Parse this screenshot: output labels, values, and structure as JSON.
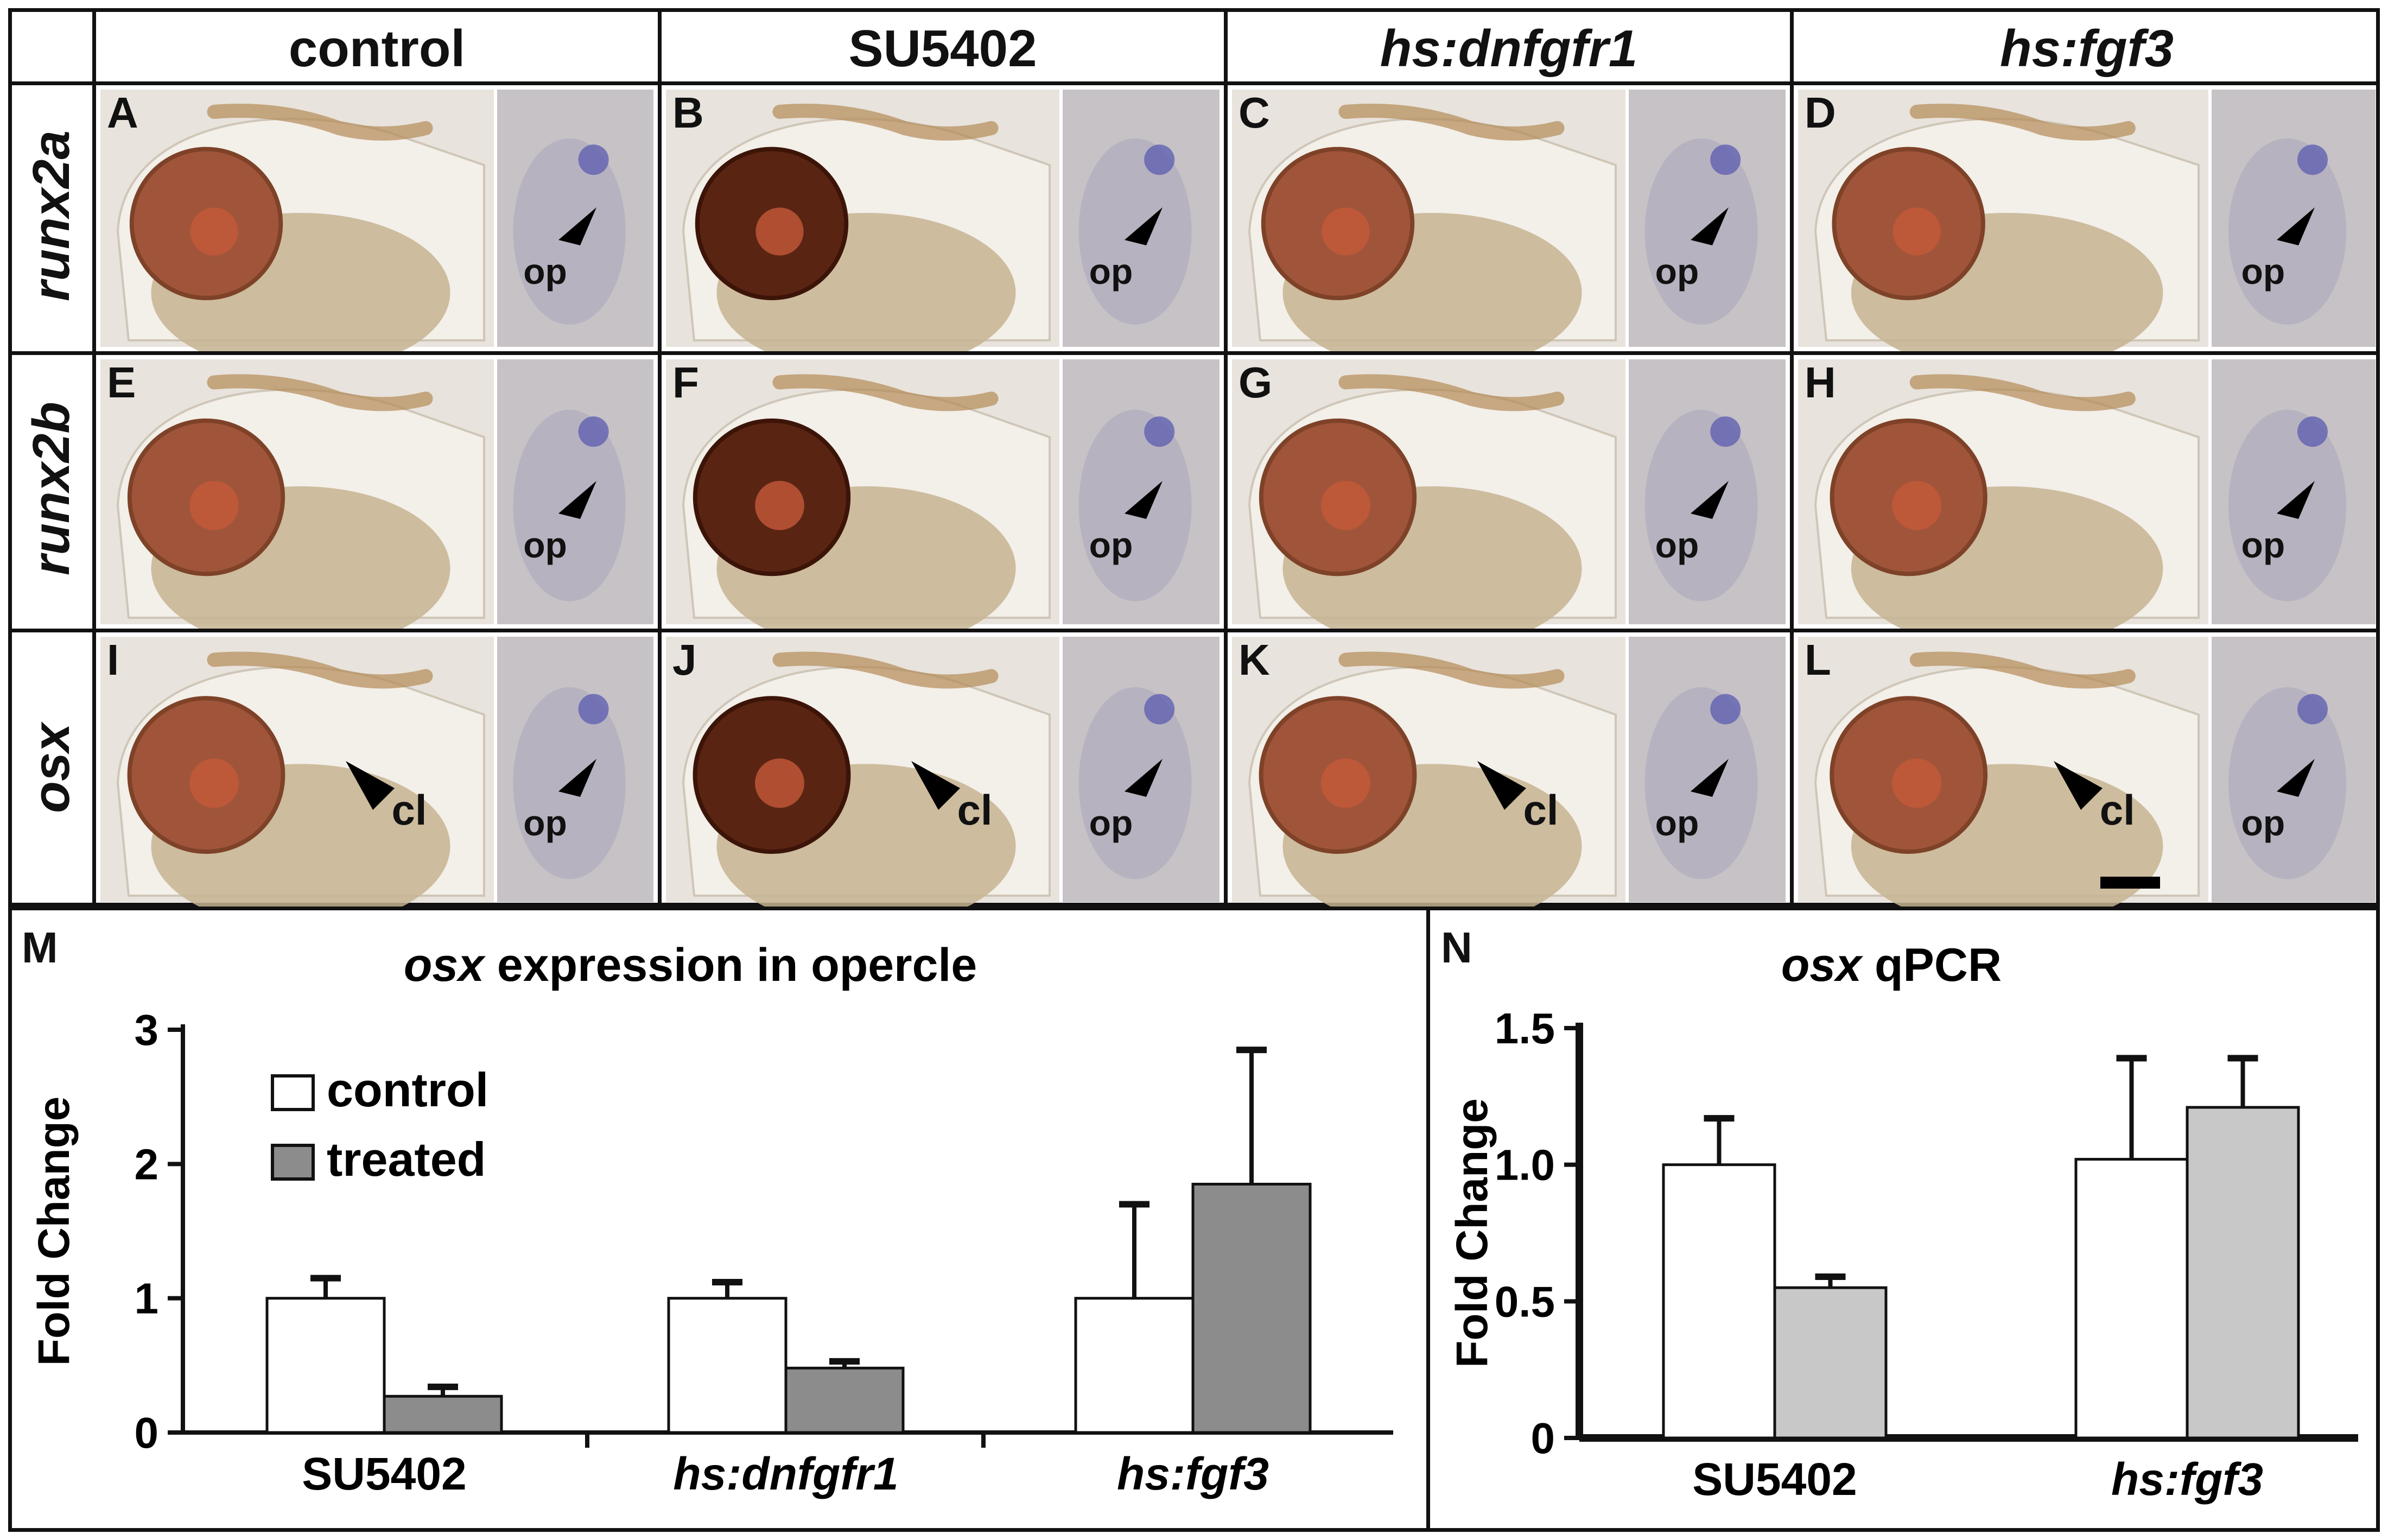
{
  "column_headers": [
    "control",
    "SU5402",
    "hs:dnfgfr1",
    "hs:fgf3"
  ],
  "row_headers": [
    "runx2a",
    "runx2b",
    "osx"
  ],
  "panel_letters": [
    "A",
    "B",
    "C",
    "D",
    "E",
    "F",
    "G",
    "H",
    "I",
    "J",
    "K",
    "L"
  ],
  "annotations": {
    "op": "op",
    "cl": "cl"
  },
  "chart_data": [
    {
      "panel": "M",
      "type": "bar",
      "title_italic": "osx",
      "title_rest": " expression in opercle",
      "ylabel": "Fold Change",
      "ylim": [
        0,
        3
      ],
      "yticks": [
        "0",
        "1",
        "2",
        "3"
      ],
      "categories": [
        "SU5402",
        "hs:dnfgfr1",
        "hs:fgf3"
      ],
      "series": [
        {
          "name": "control",
          "values": [
            1.0,
            1.0,
            1.0
          ],
          "errors": [
            0.15,
            0.12,
            0.7
          ],
          "color": "#ffffff"
        },
        {
          "name": "treated",
          "values": [
            0.27,
            0.48,
            1.85
          ],
          "errors": [
            0.07,
            0.05,
            1.0
          ],
          "color": "#8c8c8c"
        }
      ]
    },
    {
      "panel": "N",
      "type": "bar",
      "title_italic": "osx",
      "title_rest": " qPCR",
      "ylabel": "Fold Change",
      "ylim": [
        0,
        1.5
      ],
      "yticks": [
        "0",
        "0.5",
        "1.0",
        "1.5"
      ],
      "categories": [
        "SU5402",
        "hs:fgf3"
      ],
      "series": [
        {
          "values": [
            1.0,
            1.02
          ],
          "errors": [
            0.17,
            0.37
          ],
          "color": "#ffffff"
        },
        {
          "values": [
            0.55,
            1.21
          ],
          "errors": [
            0.04,
            0.18
          ],
          "color": "#c8c8c8"
        }
      ]
    }
  ]
}
